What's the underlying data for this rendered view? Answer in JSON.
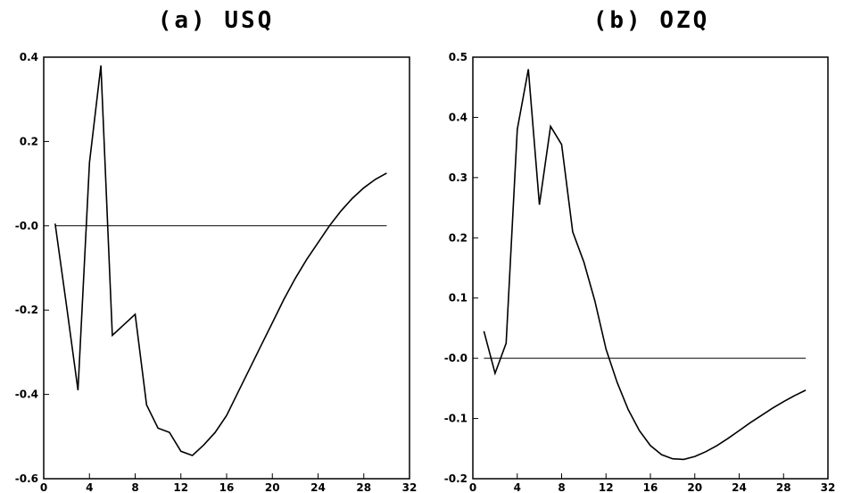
{
  "chart_data": [
    {
      "type": "line",
      "title": "(a) USQ",
      "xlim": [
        0,
        32
      ],
      "ylim": [
        -0.6,
        0.4
      ],
      "xticks": [
        0,
        4,
        8,
        12,
        16,
        20,
        24,
        28,
        32
      ],
      "xtick_labels": [
        "0",
        "4",
        "8",
        "12",
        "16",
        "20",
        "24",
        "28",
        "32"
      ],
      "yticks": [
        -0.6,
        -0.4,
        -0.2,
        0.0,
        0.2,
        0.4
      ],
      "ytick_labels": [
        "-0.6",
        "-0.4",
        "-0.2",
        "-0.0",
        "0.2",
        "0.4"
      ],
      "zero_line": 0,
      "grid": false,
      "series": [
        {
          "x": [
            1,
            2,
            3,
            4,
            5,
            6,
            7,
            8,
            9,
            10,
            11,
            12,
            13,
            14,
            15,
            16,
            17,
            18,
            19,
            20,
            21,
            22,
            23,
            24,
            25,
            26,
            27,
            28,
            29,
            30
          ],
          "values": [
            0.005,
            -0.19,
            -0.39,
            0.15,
            0.38,
            -0.26,
            -0.235,
            -0.21,
            -0.425,
            -0.48,
            -0.49,
            -0.535,
            -0.545,
            -0.52,
            -0.49,
            -0.45,
            -0.395,
            -0.34,
            -0.285,
            -0.23,
            -0.175,
            -0.125,
            -0.08,
            -0.04,
            0.0,
            0.035,
            0.065,
            0.09,
            0.11,
            0.125
          ]
        }
      ]
    },
    {
      "type": "line",
      "title": "(b) OZQ",
      "xlim": [
        0,
        32
      ],
      "ylim": [
        -0.2,
        0.5
      ],
      "xticks": [
        0,
        4,
        8,
        12,
        16,
        20,
        24,
        28,
        32
      ],
      "xtick_labels": [
        "0",
        "4",
        "8",
        "12",
        "16",
        "20",
        "24",
        "28",
        "32"
      ],
      "yticks": [
        -0.2,
        -0.1,
        0.0,
        0.1,
        0.2,
        0.3,
        0.4,
        0.5
      ],
      "ytick_labels": [
        "-0.2",
        "-0.1",
        "-0.0",
        "0.1",
        "0.2",
        "0.3",
        "0.4",
        "0.5"
      ],
      "zero_line": 0,
      "grid": false,
      "series": [
        {
          "x": [
            1,
            2,
            3,
            4,
            5,
            6,
            7,
            8,
            9,
            10,
            11,
            12,
            13,
            14,
            15,
            16,
            17,
            18,
            19,
            20,
            21,
            22,
            23,
            24,
            25,
            26,
            27,
            28,
            29,
            30
          ],
          "values": [
            0.045,
            -0.025,
            0.025,
            0.38,
            0.48,
            0.255,
            0.385,
            0.355,
            0.21,
            0.16,
            0.095,
            0.015,
            -0.04,
            -0.085,
            -0.12,
            -0.145,
            -0.16,
            -0.167,
            -0.168,
            -0.163,
            -0.155,
            -0.145,
            -0.133,
            -0.12,
            -0.107,
            -0.095,
            -0.083,
            -0.072,
            -0.062,
            -0.053
          ]
        }
      ]
    }
  ]
}
